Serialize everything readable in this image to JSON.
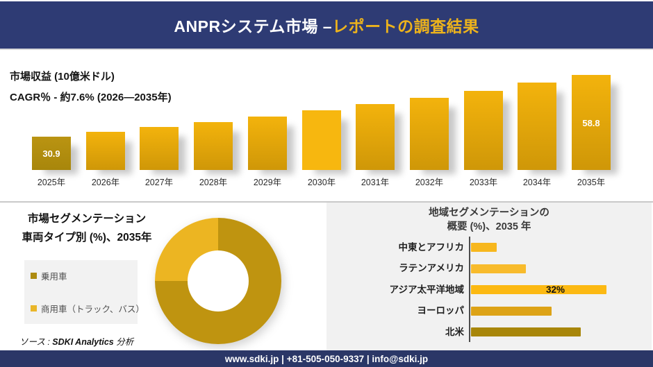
{
  "header": {
    "title_white": "ANPRシステム市場 –",
    "title_gold": "レポートの調査結果"
  },
  "revenue": {
    "metric_label": "市場収益 (10億米ドル)",
    "cagr_label": "CAGR％ - 約7.6% (2026―2035年)"
  },
  "segmentation": {
    "title_line1": "市場セグメンテーション",
    "title_line2": "車両タイプ別 (%)、2035年",
    "legend": [
      {
        "label": "乗用車",
        "color": "#ae8b10"
      },
      {
        "label": "商用車（トラック、バス）",
        "color": "#e9b629"
      }
    ]
  },
  "region": {
    "title_line1": "地域セグメンテーションの",
    "title_line2": "概要 (%)、2035 年"
  },
  "source": {
    "prefix": "ソース : ",
    "brand": "SDKI Analytics",
    "suffix": " 分析"
  },
  "footer": {
    "contact": "www.sdki.jp | +81-505-050-9337 | info@sdki.jp"
  },
  "colors": {
    "navy": "#2e3b74",
    "header_accent_gold": "#edb31c",
    "panel_gray": "#f1f1f1",
    "divider_gray": "#c9c9c9"
  },
  "chart_data": [
    {
      "type": "bar",
      "title": "市場収益 (10億米ドル)",
      "subtitle": "CAGR％ - 約7.6% (2026―2035年)",
      "categories": [
        "2025年",
        "2026年",
        "2027年",
        "2028年",
        "2029年",
        "2030年",
        "2031年",
        "2032年",
        "2033年",
        "2034年",
        "2035年"
      ],
      "values": [
        30.9,
        33.0,
        35.2,
        37.5,
        40.0,
        42.7,
        45.5,
        48.5,
        51.7,
        55.2,
        58.8
      ],
      "labeled_points": [
        {
          "category": "2025年",
          "label": "30.9"
        },
        {
          "category": "2035年",
          "label": "58.8"
        }
      ],
      "ylim": [
        15.8,
        58.8
      ],
      "grid": false,
      "colors": {
        "default_top": "#f3b30c",
        "default_bottom": "#cf9708",
        "bar_2025_top": "#ba9412",
        "bar_2025_bottom": "#a8860b",
        "bar_2030": "#f7b70f"
      }
    },
    {
      "type": "pie",
      "donut": true,
      "title": "市場セグメンテーション 車両タイプ別 (%)、2035年",
      "start_angle_deg": 0,
      "slices": [
        {
          "label": "乗用車",
          "value": 75,
          "color": "#bf9410"
        },
        {
          "label": "商用車（トラック、バス）",
          "value": 25,
          "color": "#ecb522"
        }
      ]
    },
    {
      "type": "bar",
      "orientation": "horizontal",
      "title": "地域セグメンテーションの概要 (%)、2035 年",
      "categories": [
        "中東とアフリカ",
        "ラテンアメリカ",
        "アジア太平洋地域",
        "ヨーロッパ",
        "北米"
      ],
      "values": [
        6,
        13,
        32,
        19,
        26
      ],
      "labeled_points": [
        {
          "category": "アジア太平洋地域",
          "label": "32%"
        }
      ],
      "colors": [
        "#f7b71e",
        "#f8bb2c",
        "#fcb913",
        "#dda317",
        "#a8860a"
      ],
      "xlim": [
        0,
        36
      ],
      "grid": false
    }
  ]
}
